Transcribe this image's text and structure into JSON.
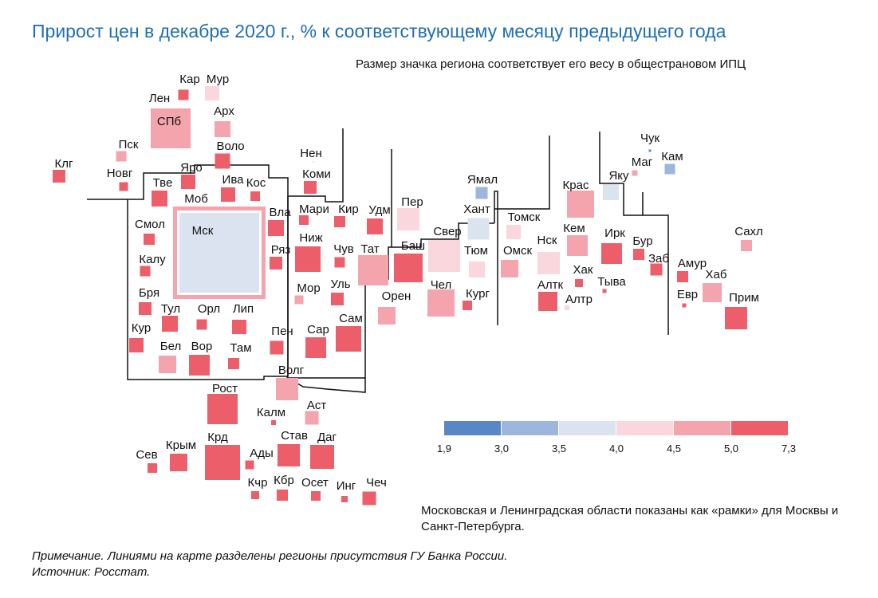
{
  "title": "Прирост цен в декабре 2020 г., % к соответствующему месяцу предыдущего года",
  "subtitle": "Размер значка региона соответствует его весу в общестрановом ИПЦ",
  "footnote": "Московская и Ленинградская области показаны как «рамки» для Москвы и Санкт-Петербурга.",
  "note": "Примечание. Линиями на карте разделены регионы присутствия ГУ Банка России.",
  "source": "Источник: Росстат.",
  "chart_data": {
    "type": "heatmap",
    "title": "Прирост цен в декабре 2020 г., % к соответствующему месяцу предыдущего года",
    "color_scale": {
      "breaks": [
        "1,9",
        "3,0",
        "3,5",
        "4,0",
        "4,5",
        "5,0",
        "7,3"
      ],
      "colors": [
        "#5b86c6",
        "#9db6dc",
        "#dbe3f1",
        "#f9d7dd",
        "#f4a4ad",
        "#ec5e69"
      ]
    },
    "regions": [
      {
        "label": "Мур",
        "bin": 3
      },
      {
        "label": "Кар",
        "bin": 5
      },
      {
        "label": "Лен",
        "bin": 4,
        "frame_for": "СПб"
      },
      {
        "label": "СПб",
        "bin": 4
      },
      {
        "label": "Арх",
        "bin": 4
      },
      {
        "label": "Пск",
        "bin": 4
      },
      {
        "label": "Клг",
        "bin": 5
      },
      {
        "label": "Волo",
        "bin": 5
      },
      {
        "label": "Новг",
        "bin": 5
      },
      {
        "label": "Яро",
        "bin": 5
      },
      {
        "label": "Тве",
        "bin": 5
      },
      {
        "label": "Ива",
        "bin": 5
      },
      {
        "label": "Кос",
        "bin": 5
      },
      {
        "label": "Моб",
        "bin": 4,
        "frame_for": "Мск"
      },
      {
        "label": "Мск",
        "bin": 2
      },
      {
        "label": "Смол",
        "bin": 5
      },
      {
        "label": "Вла",
        "bin": 5
      },
      {
        "label": "Калу",
        "bin": 5
      },
      {
        "label": "Ряз",
        "bin": 5
      },
      {
        "label": "Бря",
        "bin": 5
      },
      {
        "label": "Тул",
        "bin": 5
      },
      {
        "label": "Орл",
        "bin": 5
      },
      {
        "label": "Лип",
        "bin": 5
      },
      {
        "label": "Кур",
        "bin": 5
      },
      {
        "label": "Бел",
        "bin": 4
      },
      {
        "label": "Вор",
        "bin": 5
      },
      {
        "label": "Там",
        "bin": 5
      },
      {
        "label": "Нен",
        "bin": 2
      },
      {
        "label": "Коми",
        "bin": 5
      },
      {
        "label": "Мари",
        "bin": 5
      },
      {
        "label": "Кир",
        "bin": 5
      },
      {
        "label": "Удм",
        "bin": 5
      },
      {
        "label": "Ниж",
        "bin": 5
      },
      {
        "label": "Чув",
        "bin": 5
      },
      {
        "label": "Тат",
        "bin": 4
      },
      {
        "label": "Мор",
        "bin": 4
      },
      {
        "label": "Уль",
        "bin": 5
      },
      {
        "label": "Пен",
        "bin": 5
      },
      {
        "label": "Сар",
        "bin": 5
      },
      {
        "label": "Сам",
        "bin": 5
      },
      {
        "label": "Пер",
        "bin": 3
      },
      {
        "label": "Баш",
        "bin": 5
      },
      {
        "label": "Орен",
        "bin": 4
      },
      {
        "label": "Свер",
        "bin": 3
      },
      {
        "label": "Тюм",
        "bin": 3
      },
      {
        "label": "Чел",
        "bin": 4
      },
      {
        "label": "Кург",
        "bin": 5
      },
      {
        "label": "Ямал",
        "bin": 1
      },
      {
        "label": "Хант",
        "bin": 2
      },
      {
        "label": "Томск",
        "bin": 3
      },
      {
        "label": "Омск",
        "bin": 4
      },
      {
        "label": "Нск",
        "bin": 3
      },
      {
        "label": "Алтк",
        "bin": 5
      },
      {
        "label": "Алтр",
        "bin": 3
      },
      {
        "label": "Крас",
        "bin": 4
      },
      {
        "label": "Кем",
        "bin": 4
      },
      {
        "label": "Хак",
        "bin": 5
      },
      {
        "label": "Тыва",
        "bin": 5
      },
      {
        "label": "Ирк",
        "bin": 5
      },
      {
        "label": "Бур",
        "bin": 5
      },
      {
        "label": "Заб",
        "bin": 5
      },
      {
        "label": "Яку",
        "bin": 2
      },
      {
        "label": "Чук",
        "bin": 0
      },
      {
        "label": "Маг",
        "bin": 4
      },
      {
        "label": "Кам",
        "bin": 1
      },
      {
        "label": "Сахл",
        "bin": 4
      },
      {
        "label": "Амур",
        "bin": 5
      },
      {
        "label": "Хаб",
        "bin": 4
      },
      {
        "label": "Евр",
        "bin": 5
      },
      {
        "label": "Прим",
        "bin": 5
      },
      {
        "label": "Волг",
        "bin": 4
      },
      {
        "label": "Рост",
        "bin": 5
      },
      {
        "label": "Калм",
        "bin": 5
      },
      {
        "label": "Аст",
        "bin": 4
      },
      {
        "label": "Сев",
        "bin": 5
      },
      {
        "label": "Крым",
        "bin": 5
      },
      {
        "label": "Крд",
        "bin": 5
      },
      {
        "label": "Ады",
        "bin": 5
      },
      {
        "label": "Став",
        "bin": 5
      },
      {
        "label": "Даг",
        "bin": 5
      },
      {
        "label": "Кчр",
        "bin": 5
      },
      {
        "label": "Кбр",
        "bin": 5
      },
      {
        "label": "Осет",
        "bin": 5
      },
      {
        "label": "Инг",
        "bin": 5
      },
      {
        "label": "Чеч",
        "bin": 5
      }
    ]
  }
}
